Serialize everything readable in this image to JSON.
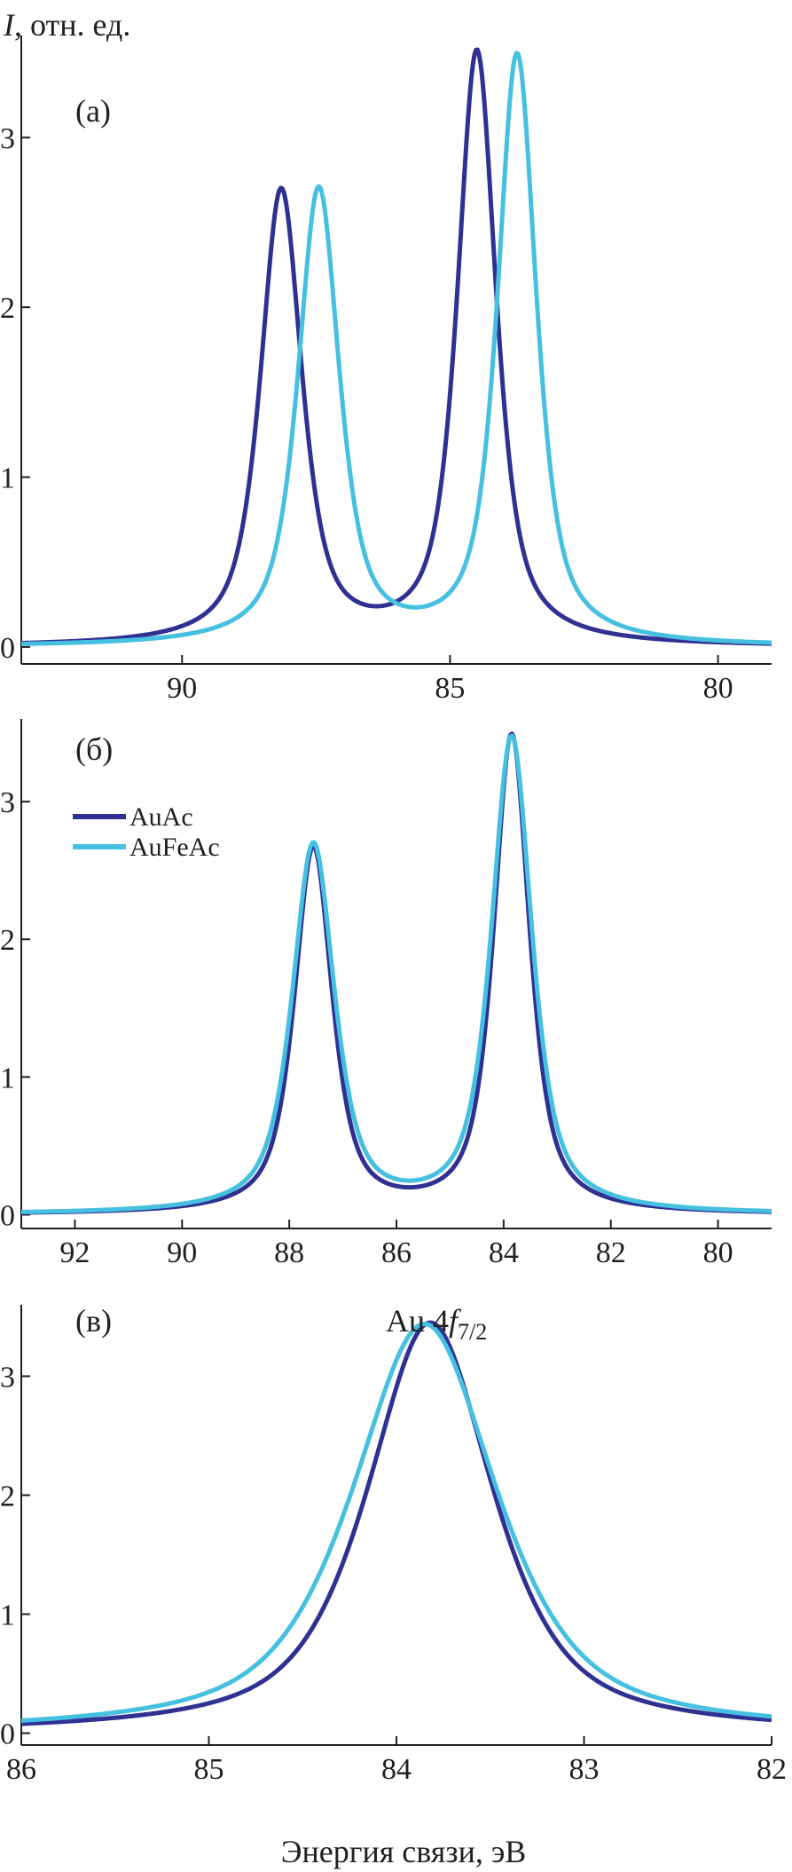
{
  "figure": {
    "ylabel_symbol": "I",
    "ylabel_unit": ", отн. ед.",
    "xlabel": "Энергия связи, эВ",
    "legend": [
      {
        "name": "AuAc",
        "color": "#2e3192"
      },
      {
        "name": "AuFeAc",
        "color": "#45c0e0"
      }
    ]
  },
  "chart_data": [
    {
      "type": "line",
      "label": "(а)",
      "annotation": "",
      "xlim": [
        93,
        79
      ],
      "ylim": [
        -0.1,
        3.6
      ],
      "xticks": [
        90,
        85,
        80
      ],
      "yticks": [
        0,
        1,
        2,
        3
      ],
      "grid": false,
      "series": [
        {
          "name": "AuAc",
          "color": "#2e3192",
          "peaks": [
            {
              "x0": 88.15,
              "height": 2.67,
              "width": 0.46
            },
            {
              "x0": 84.5,
              "height": 3.49,
              "width": 0.43
            }
          ]
        },
        {
          "name": "AuFeAc",
          "color": "#45c0e0",
          "peaks": [
            {
              "x0": 87.45,
              "height": 2.68,
              "width": 0.46
            },
            {
              "x0": 83.75,
              "height": 3.47,
              "width": 0.43
            }
          ]
        }
      ]
    },
    {
      "type": "line",
      "label": "(б)",
      "annotation": "",
      "xlim": [
        93,
        79
      ],
      "ylim": [
        -0.1,
        3.6
      ],
      "xticks": [
        92,
        90,
        88,
        86,
        84,
        82,
        80
      ],
      "yticks": [
        0,
        1,
        2,
        3
      ],
      "grid": false,
      "series": [
        {
          "name": "AuAc",
          "color": "#2e3192",
          "peaks": [
            {
              "x0": 87.55,
              "height": 2.65,
              "width": 0.42
            },
            {
              "x0": 83.85,
              "height": 3.47,
              "width": 0.4
            }
          ]
        },
        {
          "name": "AuFeAc",
          "color": "#45c0e0",
          "peaks": [
            {
              "x0": 87.55,
              "height": 2.67,
              "width": 0.47
            },
            {
              "x0": 83.85,
              "height": 3.45,
              "width": 0.45
            }
          ]
        }
      ]
    },
    {
      "type": "line",
      "label": "(в)",
      "annotation": "Au 4f7/2",
      "xlim": [
        86,
        82
      ],
      "ylim": [
        -0.1,
        3.6
      ],
      "xticks": [
        86,
        85,
        84,
        83,
        82
      ],
      "yticks": [
        0,
        1,
        2,
        3
      ],
      "grid": false,
      "series": [
        {
          "name": "AuAc",
          "color": "#2e3192",
          "peaks": [
            {
              "x0": 83.82,
              "height": 3.45,
              "width": 0.4
            }
          ]
        },
        {
          "name": "AuFeAc",
          "color": "#45c0e0",
          "peaks": [
            {
              "x0": 83.85,
              "height": 3.44,
              "width": 0.46
            }
          ]
        }
      ]
    }
  ]
}
